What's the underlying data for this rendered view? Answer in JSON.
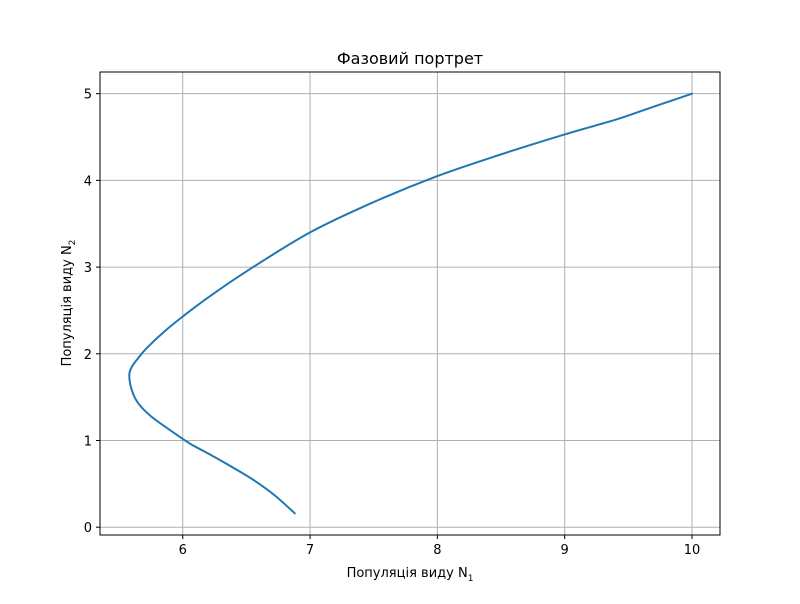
{
  "chart_data": {
    "type": "line",
    "title": "Фазовий портрет",
    "xlabel": "Популяція виду N",
    "xlabel_subscript": "1",
    "ylabel": "Популяція виду N",
    "ylabel_subscript": "2",
    "xlim": [
      5.35,
      10.22
    ],
    "ylim": [
      -0.09,
      5.25
    ],
    "x_ticks": [
      6,
      7,
      8,
      9,
      10
    ],
    "y_ticks": [
      0,
      1,
      2,
      3,
      4,
      5
    ],
    "grid": true,
    "line_color": "#1f77b4",
    "series": [
      {
        "x": [
          10.0,
          9.8,
          9.6,
          9.4,
          9.0,
          8.5,
          8.0,
          7.5,
          7.0,
          6.5,
          6.2,
          6.0,
          5.85,
          5.72,
          5.65,
          5.6,
          5.58,
          5.6,
          5.65,
          5.75,
          5.9,
          6.05,
          6.2,
          6.38,
          6.55,
          6.72,
          6.88
        ],
        "y": [
          5.0,
          4.9,
          4.8,
          4.7,
          4.53,
          4.3,
          4.05,
          3.75,
          3.4,
          2.95,
          2.65,
          2.43,
          2.25,
          2.07,
          1.95,
          1.85,
          1.75,
          1.58,
          1.43,
          1.28,
          1.12,
          0.97,
          0.85,
          0.7,
          0.55,
          0.37,
          0.16
        ]
      }
    ]
  }
}
